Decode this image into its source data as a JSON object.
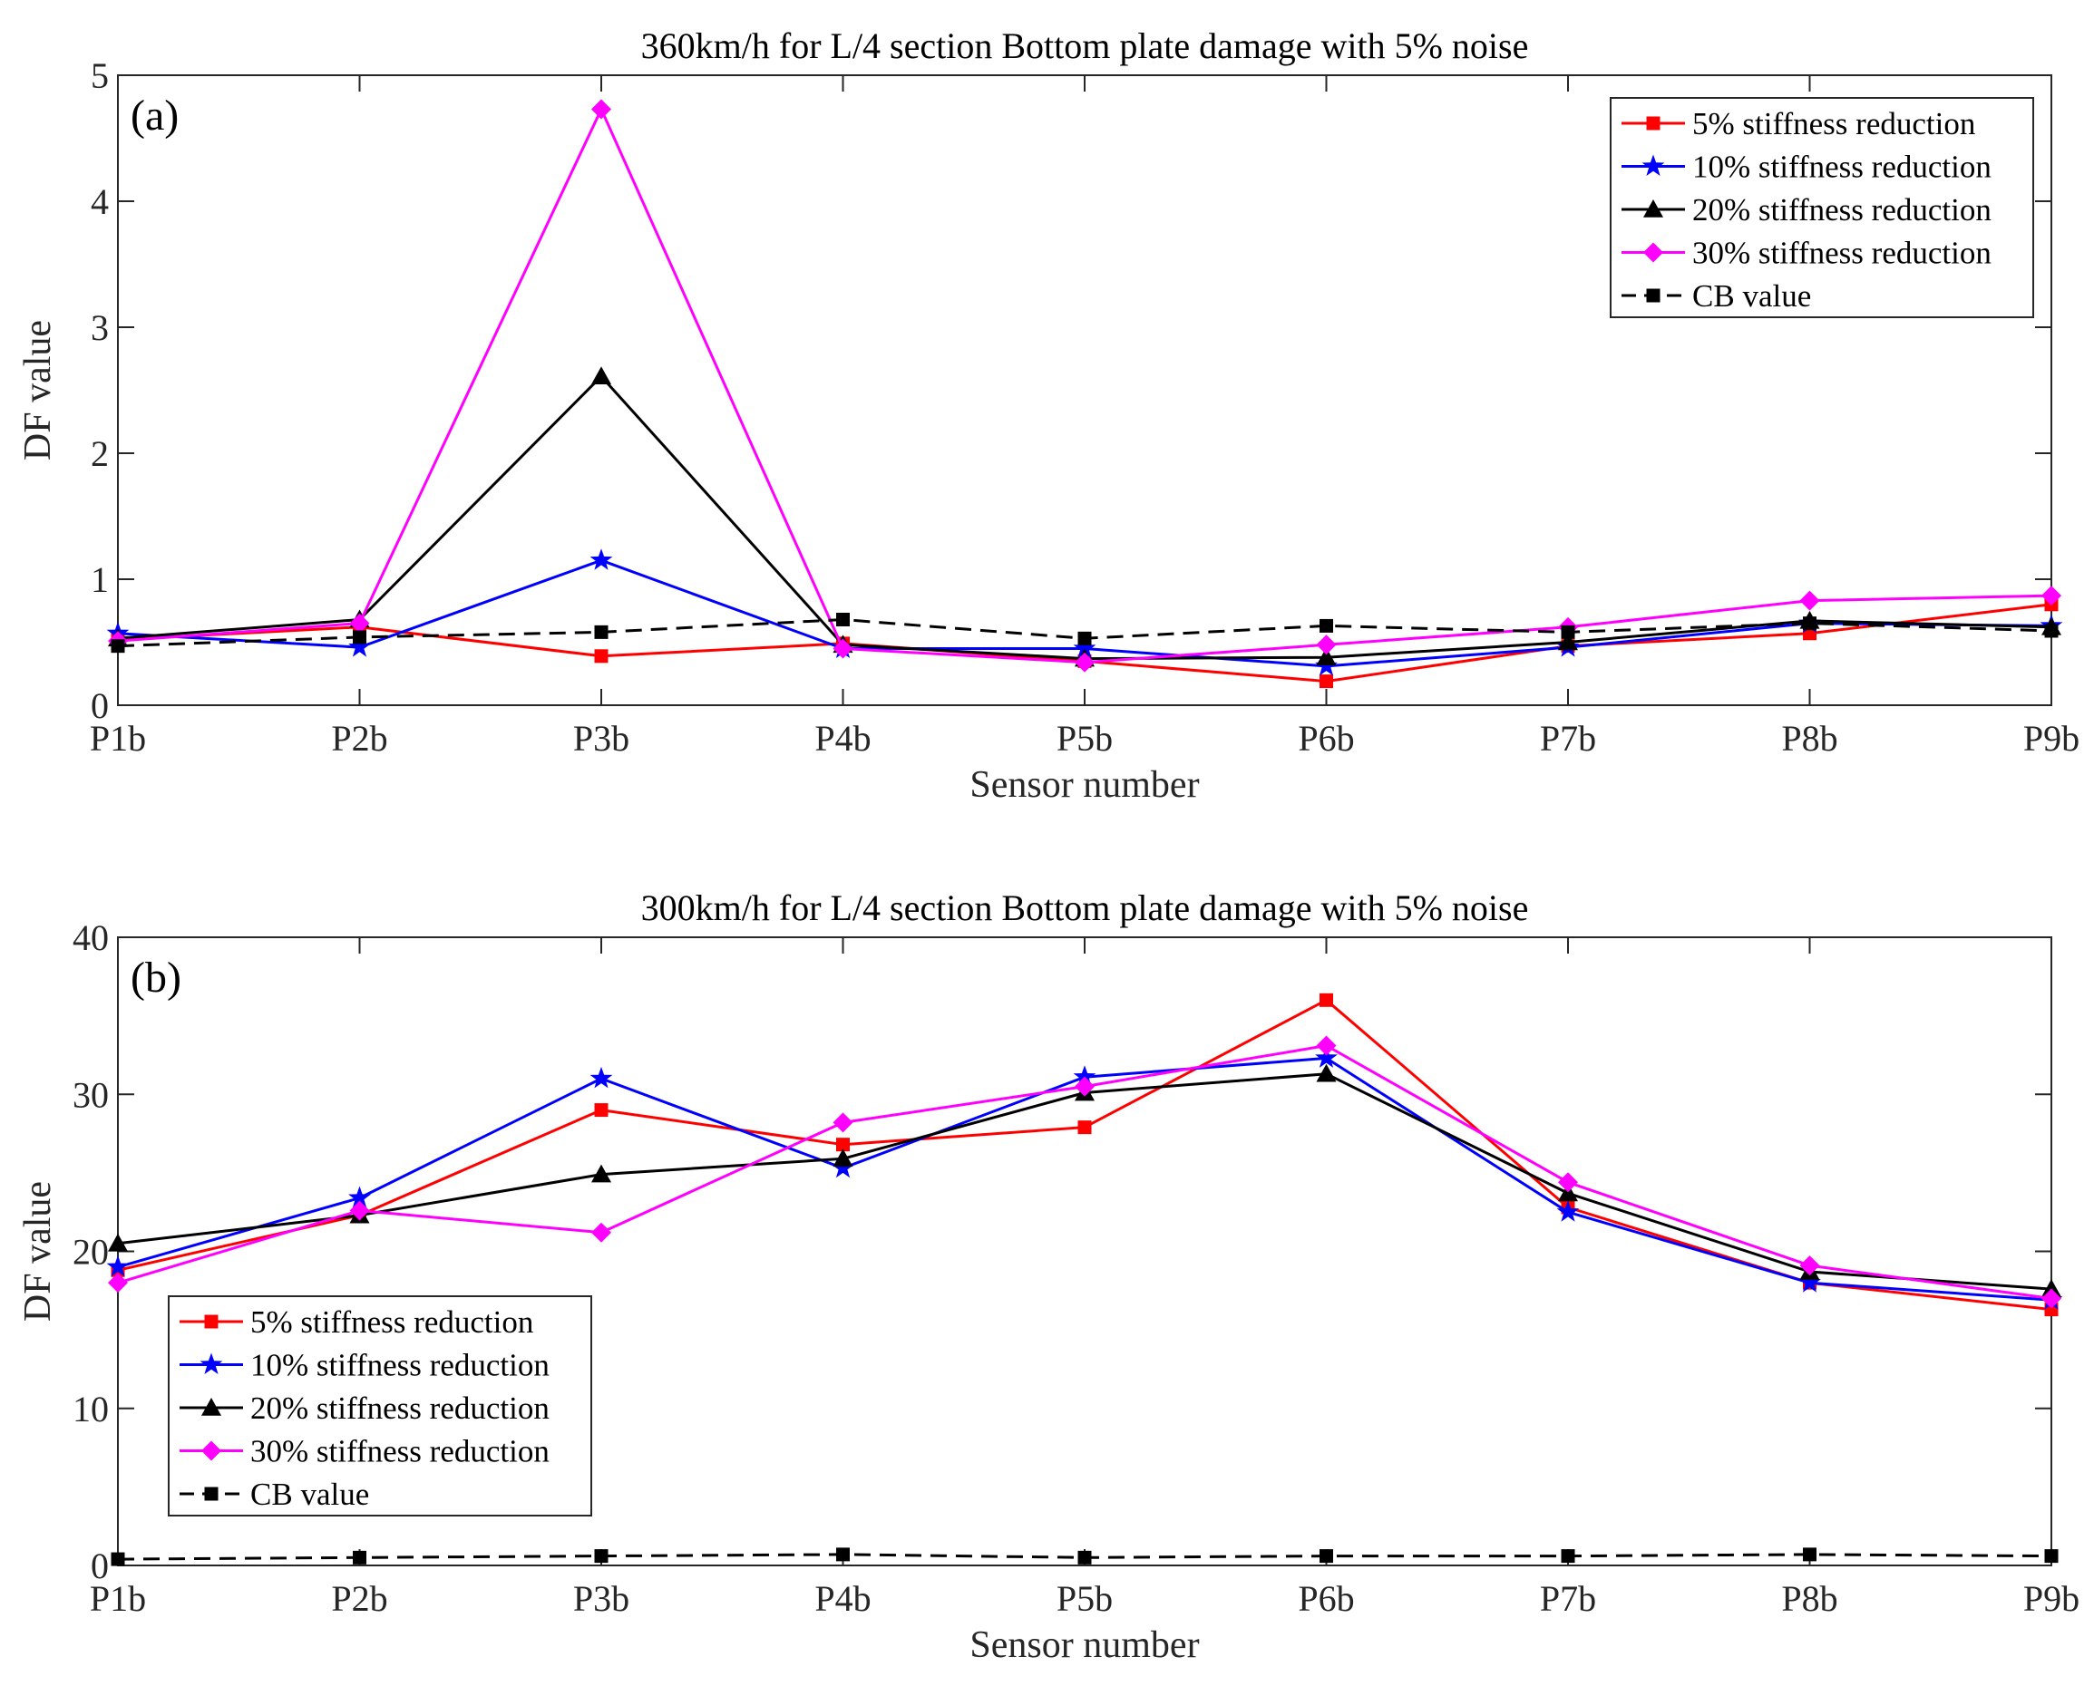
{
  "chart_data": [
    {
      "type": "line",
      "panel_label": "(a)",
      "title": "360km/h for L/4 section Bottom plate damage with 5% noise",
      "xlabel": "Sensor number",
      "ylabel": "DF value",
      "categories": [
        "P1b",
        "P2b",
        "P3b",
        "P4b",
        "P5b",
        "P6b",
        "P7b",
        "P8b",
        "P9b"
      ],
      "ylim": [
        0,
        5
      ],
      "yticks": [
        0,
        1,
        2,
        3,
        4,
        5
      ],
      "legend_position": "top-right",
      "series": [
        {
          "name": "5% stiffness reduction",
          "color": "#ff0000",
          "marker": "square",
          "dash": "solid",
          "values": [
            0.52,
            0.62,
            0.39,
            0.49,
            0.35,
            0.19,
            0.47,
            0.57,
            0.8
          ]
        },
        {
          "name": "10% stiffness reduction",
          "color": "#0000ff",
          "marker": "star",
          "dash": "solid",
          "values": [
            0.57,
            0.46,
            1.15,
            0.45,
            0.45,
            0.31,
            0.46,
            0.65,
            0.63
          ]
        },
        {
          "name": "20% stiffness reduction",
          "color": "#000000",
          "marker": "triangle",
          "dash": "solid",
          "values": [
            0.53,
            0.68,
            2.61,
            0.48,
            0.37,
            0.38,
            0.5,
            0.67,
            0.62
          ]
        },
        {
          "name": "30% stiffness reduction",
          "color": "#ff00ff",
          "marker": "diamond",
          "dash": "solid",
          "values": [
            0.51,
            0.65,
            4.73,
            0.45,
            0.34,
            0.48,
            0.62,
            0.83,
            0.87
          ]
        },
        {
          "name": "CB value",
          "color": "#000000",
          "marker": "square",
          "dash": "dashed",
          "values": [
            0.47,
            0.54,
            0.58,
            0.68,
            0.53,
            0.63,
            0.58,
            0.65,
            0.59
          ]
        }
      ]
    },
    {
      "type": "line",
      "panel_label": "(b)",
      "title": "300km/h for L/4 section Bottom plate damage with 5% noise",
      "xlabel": "Sensor number",
      "ylabel": "DF value",
      "categories": [
        "P1b",
        "P2b",
        "P3b",
        "P4b",
        "P5b",
        "P6b",
        "P7b",
        "P8b",
        "P9b"
      ],
      "ylim": [
        0,
        40
      ],
      "yticks": [
        0,
        10,
        20,
        30,
        40
      ],
      "legend_position": "lower-left",
      "series": [
        {
          "name": "5% stiffness reduction",
          "color": "#ff0000",
          "marker": "square",
          "dash": "solid",
          "values": [
            18.8,
            22.3,
            29.0,
            26.8,
            27.9,
            36.0,
            22.8,
            18.0,
            16.3
          ]
        },
        {
          "name": "10% stiffness reduction",
          "color": "#0000ff",
          "marker": "star",
          "dash": "solid",
          "values": [
            19.0,
            23.4,
            31.0,
            25.3,
            31.1,
            32.3,
            22.5,
            18.0,
            16.9
          ]
        },
        {
          "name": "20% stiffness reduction",
          "color": "#000000",
          "marker": "triangle",
          "dash": "solid",
          "values": [
            20.5,
            22.3,
            24.9,
            25.9,
            30.1,
            31.3,
            23.7,
            18.7,
            17.6
          ]
        },
        {
          "name": "30% stiffness reduction",
          "color": "#ff00ff",
          "marker": "diamond",
          "dash": "solid",
          "values": [
            18.0,
            22.6,
            21.2,
            28.2,
            30.5,
            33.1,
            24.4,
            19.1,
            17.0
          ]
        },
        {
          "name": "CB value",
          "color": "#000000",
          "marker": "square",
          "dash": "dashed",
          "values": [
            0.4,
            0.5,
            0.6,
            0.7,
            0.5,
            0.6,
            0.6,
            0.7,
            0.6
          ]
        }
      ]
    }
  ]
}
